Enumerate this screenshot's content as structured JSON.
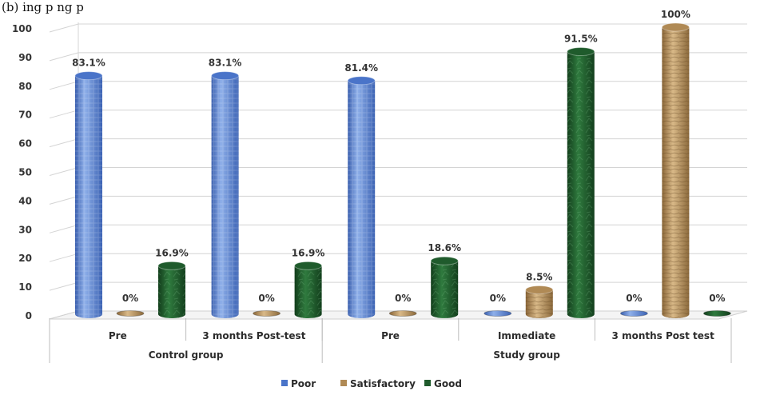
{
  "caption": "(b)                                                         ing                    p                          ng p",
  "chart_data": {
    "type": "bar",
    "ylim": [
      0,
      100
    ],
    "yticks": [
      0,
      10,
      20,
      30,
      40,
      50,
      60,
      70,
      80,
      90,
      100
    ],
    "grid": true,
    "legend_position": "bottom",
    "categories": [
      "Pre",
      "3 months Post-test",
      "Pre",
      "Immediate",
      "3 months Post test"
    ],
    "groups": [
      {
        "label": "Control group",
        "categories": [
          0,
          1
        ]
      },
      {
        "label": "Study group",
        "categories": [
          2,
          3,
          4
        ]
      }
    ],
    "series": [
      {
        "name": "Poor",
        "color": "#4a74c9",
        "values": [
          83.1,
          83.1,
          81.4,
          0,
          0
        ],
        "labels": [
          "83.1%",
          "83.1%",
          "81.4%",
          "0%",
          "0%"
        ]
      },
      {
        "name": "Satisfactory",
        "color": "#b08a55",
        "values": [
          0,
          0,
          0,
          8.5,
          100
        ],
        "labels": [
          "0%",
          "0%",
          "0%",
          "8.5%",
          "100%"
        ]
      },
      {
        "name": "Good",
        "color": "#1f5b2c",
        "values": [
          16.9,
          16.9,
          18.6,
          91.5,
          0
        ],
        "labels": [
          "16.9%",
          "16.9%",
          "18.6%",
          "91.5%",
          "0%"
        ]
      }
    ]
  }
}
